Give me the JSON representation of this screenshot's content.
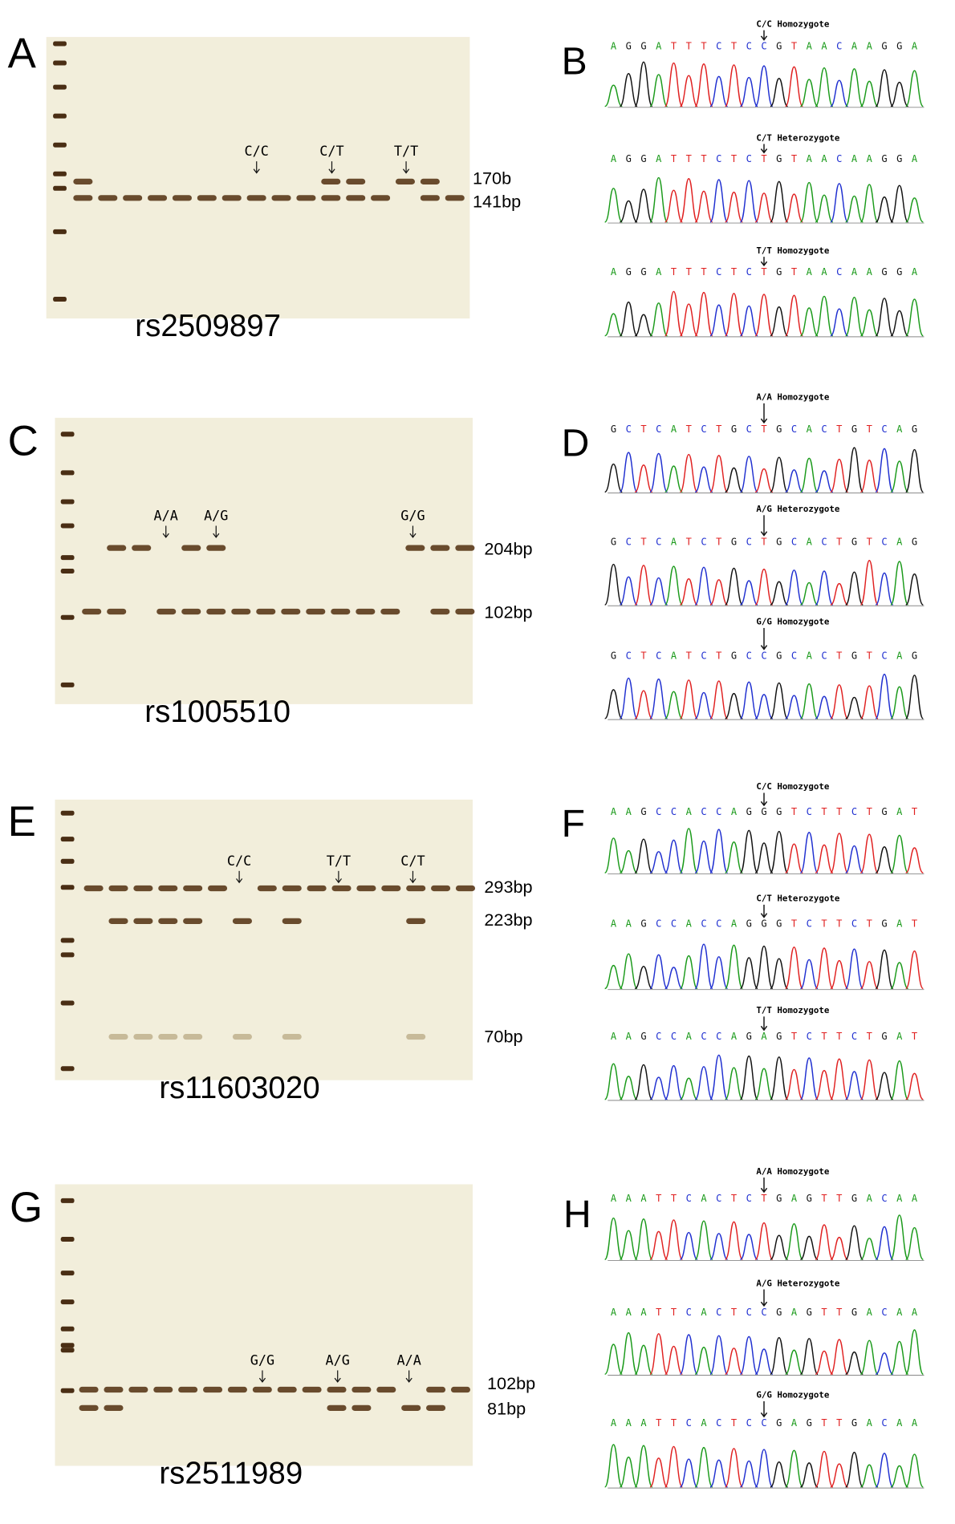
{
  "gels": [
    {
      "letter": "A",
      "rs": "rs2509897",
      "sizes": [
        "170b",
        "141bp"
      ],
      "genotypes": [
        "C/C",
        "C/T",
        "T/T"
      ]
    },
    {
      "letter": "C",
      "rs": "rs1005510",
      "sizes": [
        "204bp",
        "102bp"
      ],
      "genotypes": [
        "A/A",
        "A/G",
        "G/G"
      ]
    },
    {
      "letter": "E",
      "rs": "rs11603020",
      "sizes": [
        "293bp",
        "223bp",
        "70bp"
      ],
      "genotypes": [
        "C/C",
        "T/T",
        "C/T"
      ]
    },
    {
      "letter": "G",
      "rs": "rs2511989",
      "sizes": [
        "102bp",
        "81bp"
      ],
      "genotypes": [
        "G/G",
        "A/G",
        "A/A"
      ]
    }
  ],
  "chromatograms": [
    {
      "letter": "B",
      "traces": [
        {
          "title": "C/C Homozygote",
          "sequence": [
            "A",
            "G",
            "G",
            "A",
            "T",
            "T",
            "T",
            "C",
            "T",
            "C",
            "C",
            "G",
            "T",
            "A",
            "A",
            "C",
            "A",
            "A",
            "G",
            "G",
            "A"
          ]
        },
        {
          "title": "C/T Heterozygote",
          "sequence": [
            "A",
            "G",
            "G",
            "A",
            "T",
            "T",
            "T",
            "C",
            "T",
            "C",
            "T",
            "G",
            "T",
            "A",
            "A",
            "C",
            "A",
            "A",
            "G",
            "G",
            "A"
          ]
        },
        {
          "title": "T/T Homozygote",
          "sequence": [
            "A",
            "G",
            "G",
            "A",
            "T",
            "T",
            "T",
            "C",
            "T",
            "C",
            "T",
            "G",
            "T",
            "A",
            "A",
            "C",
            "A",
            "A",
            "G",
            "G",
            "A"
          ]
        }
      ]
    },
    {
      "letter": "D",
      "traces": [
        {
          "title": "A/A Homozygote",
          "sequence": [
            "G",
            "C",
            "T",
            "C",
            "A",
            "T",
            "C",
            "T",
            "G",
            "C",
            "T",
            "G",
            "C",
            "A",
            "C",
            "T",
            "G",
            "T",
            "C",
            "A",
            "G"
          ]
        },
        {
          "title": "A/G Heterozygote",
          "sequence": [
            "G",
            "C",
            "T",
            "C",
            "A",
            "T",
            "C",
            "T",
            "G",
            "C",
            "T",
            "G",
            "C",
            "A",
            "C",
            "T",
            "G",
            "T",
            "C",
            "A",
            "G"
          ]
        },
        {
          "title": "G/G Homozygote",
          "sequence": [
            "G",
            "C",
            "T",
            "C",
            "A",
            "T",
            "C",
            "T",
            "G",
            "C",
            "C",
            "G",
            "C",
            "A",
            "C",
            "T",
            "G",
            "T",
            "C",
            "A",
            "G"
          ]
        }
      ]
    },
    {
      "letter": "F",
      "traces": [
        {
          "title": "C/C Homozygote",
          "sequence": [
            "A",
            "A",
            "G",
            "C",
            "C",
            "A",
            "C",
            "C",
            "A",
            "G",
            "G",
            "G",
            "T",
            "C",
            "T",
            "T",
            "C",
            "T",
            "G",
            "A",
            "T"
          ]
        },
        {
          "title": "C/T Heterozygote",
          "sequence": [
            "A",
            "A",
            "G",
            "C",
            "C",
            "A",
            "C",
            "C",
            "A",
            "G",
            "G",
            "G",
            "T",
            "C",
            "T",
            "T",
            "C",
            "T",
            "G",
            "A",
            "T"
          ]
        },
        {
          "title": "T/T Homozygote",
          "sequence": [
            "A",
            "A",
            "G",
            "C",
            "C",
            "A",
            "C",
            "C",
            "A",
            "G",
            "A",
            "G",
            "T",
            "C",
            "T",
            "T",
            "C",
            "T",
            "G",
            "A",
            "T"
          ]
        }
      ]
    },
    {
      "letter": "H",
      "traces": [
        {
          "title": "A/A Homozygote",
          "sequence": [
            "A",
            "A",
            "A",
            "T",
            "T",
            "C",
            "A",
            "C",
            "T",
            "C",
            "T",
            "G",
            "A",
            "G",
            "T",
            "T",
            "G",
            "A",
            "C",
            "A",
            "A"
          ]
        },
        {
          "title": "A/G Heterozygote",
          "sequence": [
            "A",
            "A",
            "A",
            "T",
            "T",
            "C",
            "A",
            "C",
            "T",
            "C",
            "C",
            "G",
            "A",
            "G",
            "T",
            "T",
            "G",
            "A",
            "C",
            "A",
            "A"
          ]
        },
        {
          "title": "G/G Homozygote",
          "sequence": [
            "A",
            "A",
            "A",
            "T",
            "T",
            "C",
            "A",
            "C",
            "T",
            "C",
            "C",
            "G",
            "A",
            "G",
            "T",
            "T",
            "G",
            "A",
            "C",
            "A",
            "A"
          ]
        }
      ]
    }
  ]
}
